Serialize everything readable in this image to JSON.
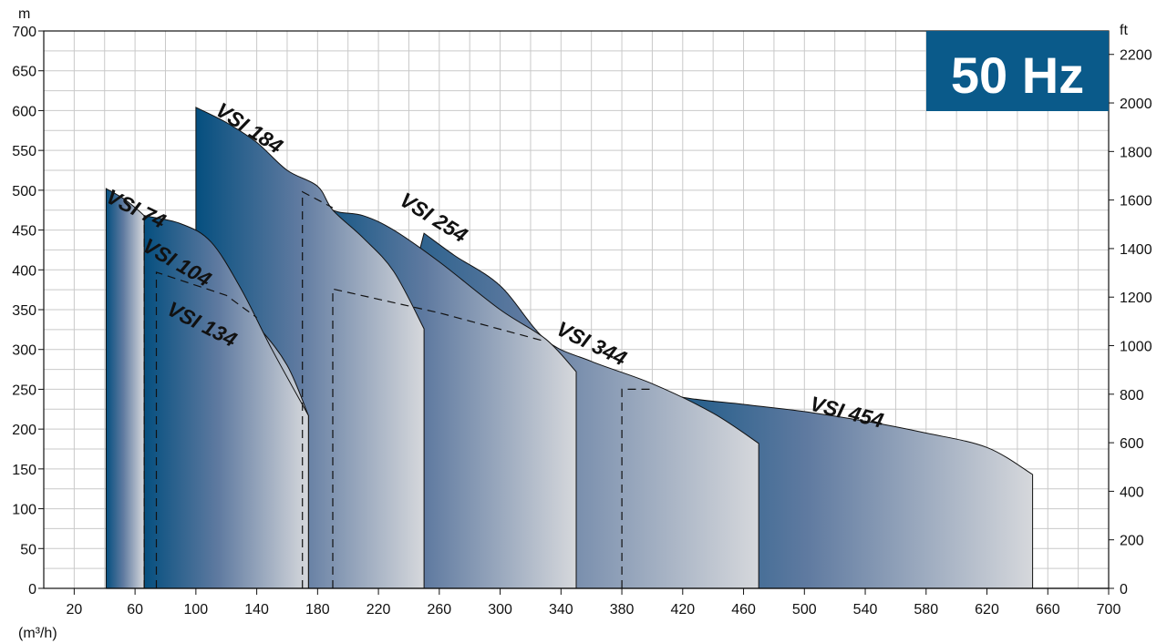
{
  "chart_data": {
    "type": "area",
    "badge": {
      "text": "50 Hz",
      "color": "#0a5a8a"
    },
    "x_axis": {
      "unit": "(m³/h)",
      "range": [
        0,
        700
      ],
      "ticks": [
        20,
        60,
        100,
        140,
        180,
        220,
        260,
        300,
        340,
        380,
        420,
        460,
        500,
        540,
        580,
        620,
        660,
        700
      ]
    },
    "y_left": {
      "unit": "m",
      "range": [
        0,
        700
      ],
      "ticks": [
        0,
        50,
        100,
        150,
        200,
        250,
        300,
        350,
        400,
        450,
        500,
        550,
        600,
        650,
        700
      ]
    },
    "y_right": {
      "unit": "ft",
      "range": [
        0,
        2297
      ],
      "ticks": [
        0,
        200,
        400,
        600,
        800,
        1000,
        1200,
        1400,
        1600,
        1800,
        2000,
        2200
      ]
    },
    "grid": true,
    "colors": {
      "dark": "#054f7f",
      "light": "#d6d8dc",
      "edge": "#111111"
    },
    "series": [
      {
        "name": "VSI 454",
        "x_start": 380,
        "x_end": 650,
        "curve": [
          [
            350,
            273
          ],
          [
            380,
            258
          ],
          [
            420,
            240
          ],
          [
            460,
            231
          ],
          [
            500,
            222
          ],
          [
            540,
            210
          ],
          [
            580,
            195
          ],
          [
            620,
            177
          ],
          [
            650,
            143
          ]
        ],
        "dashed": [
          [
            380,
            0
          ],
          [
            380,
            250
          ],
          [
            400,
            250
          ]
        ]
      },
      {
        "name": "VSI 344",
        "x_start": 190,
        "x_end": 470,
        "curve": [
          [
            250,
            446
          ],
          [
            270,
            418
          ],
          [
            300,
            380
          ],
          [
            330,
            312
          ],
          [
            360,
            285
          ],
          [
            400,
            257
          ],
          [
            440,
            220
          ],
          [
            470,
            182
          ]
        ],
        "dashed": [
          [
            190,
            0
          ],
          [
            190,
            376
          ],
          [
            260,
            346
          ],
          [
            330,
            310
          ]
        ]
      },
      {
        "name": "VSI 254",
        "x_start": 170,
        "x_end": 350,
        "curve": [
          [
            180,
            498
          ],
          [
            190,
            475
          ],
          [
            210,
            468
          ],
          [
            230,
            450
          ],
          [
            260,
            410
          ],
          [
            300,
            350
          ],
          [
            330,
            313
          ],
          [
            350,
            272
          ]
        ],
        "dashed": [
          [
            170,
            0
          ],
          [
            170,
            498
          ],
          [
            190,
            478
          ]
        ]
      },
      {
        "name": "VSI 184",
        "x_start": 100,
        "x_end": 250,
        "curve": [
          [
            100,
            604
          ],
          [
            120,
            585
          ],
          [
            140,
            560
          ],
          [
            160,
            525
          ],
          [
            180,
            505
          ],
          [
            190,
            475
          ],
          [
            210,
            440
          ],
          [
            230,
            398
          ],
          [
            250,
            326
          ]
        ],
        "dashed": []
      },
      {
        "name": "VSI 134",
        "x_start": 74,
        "x_end": 174,
        "curve": [
          [
            74,
            397
          ],
          [
            100,
            380
          ],
          [
            120,
            360
          ],
          [
            140,
            330
          ],
          [
            160,
            280
          ],
          [
            174,
            217
          ]
        ],
        "dashed": [
          [
            74,
            0
          ],
          [
            74,
            397
          ],
          [
            120,
            368
          ],
          [
            140,
            340
          ]
        ]
      },
      {
        "name": "VSI 104",
        "x_start": 66,
        "x_end": 174,
        "curve": [
          [
            66,
            468
          ],
          [
            90,
            458
          ],
          [
            110,
            435
          ],
          [
            130,
            375
          ],
          [
            150,
            300
          ],
          [
            174,
            217
          ]
        ],
        "dashed": [
          [
            66,
            0
          ],
          [
            66,
            468
          ],
          [
            72,
            465
          ]
        ]
      },
      {
        "name": "VSI 74",
        "x_start": 41,
        "x_end": 66,
        "curve": [
          [
            41,
            502
          ],
          [
            52,
            490
          ],
          [
            62,
            475
          ],
          [
            66,
            468
          ]
        ],
        "dashed": []
      }
    ],
    "labels": [
      {
        "series": "VSI 74",
        "x": 40,
        "y": 486,
        "rotation": 26
      },
      {
        "series": "VSI 104",
        "x": 64,
        "y": 425,
        "rotation": 30
      },
      {
        "series": "VSI 134",
        "x": 80,
        "y": 345,
        "rotation": 27
      },
      {
        "series": "VSI 184",
        "x": 112,
        "y": 596,
        "rotation": 33
      },
      {
        "series": "VSI 254",
        "x": 233,
        "y": 483,
        "rotation": 32
      },
      {
        "series": "VSI 344",
        "x": 336,
        "y": 320,
        "rotation": 26
      },
      {
        "series": "VSI 454",
        "x": 503,
        "y": 224,
        "rotation": 14
      }
    ]
  }
}
